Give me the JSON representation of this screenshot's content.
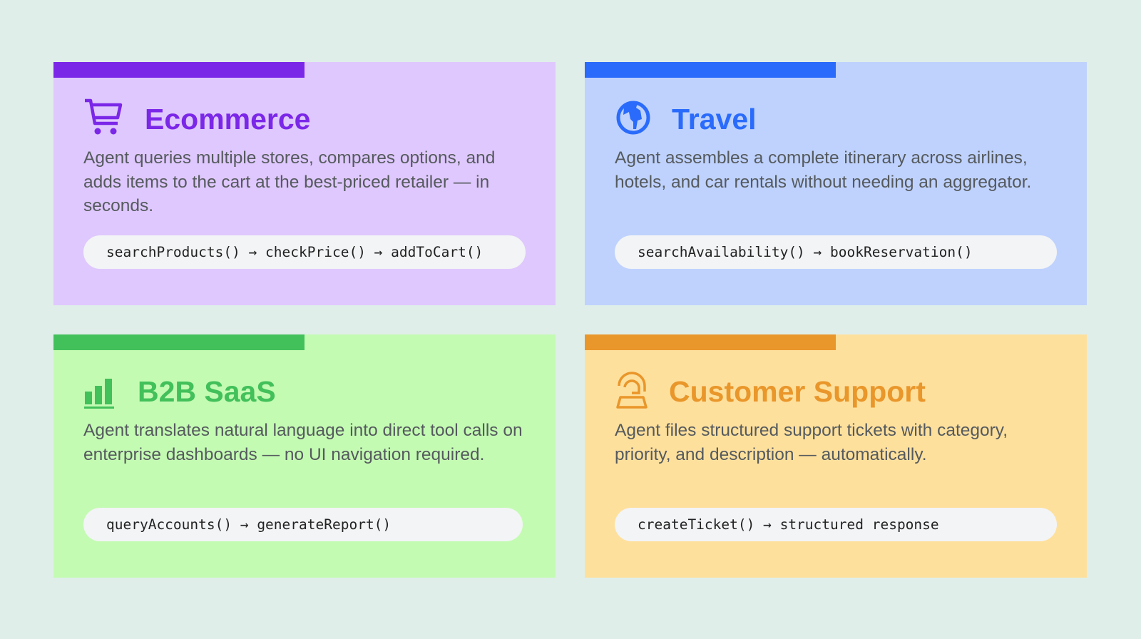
{
  "cards": [
    {
      "id": "ecommerce",
      "title": "Ecommerce",
      "icon": "shopping-cart-icon",
      "accent": "#7b27e8",
      "bg": "#dfc8fd",
      "description": "Agent queries multiple stores, compares options, and adds items to the cart at the best-priced retailer — in seconds.",
      "flow": "searchProducts() → checkPrice() → addToCart()"
    },
    {
      "id": "travel",
      "title": "Travel",
      "icon": "globe-icon",
      "accent": "#2a6bfb",
      "bg": "#bfd2fd",
      "description": "Agent assembles a complete itinerary across airlines, hotels, and car rentals without needing an aggregator.",
      "flow": "searchAvailability() → bookReservation()"
    },
    {
      "id": "b2b",
      "title": "B2B SaaS",
      "icon": "bar-chart-icon",
      "accent": "#42c05a",
      "bg": "#c4fbb3",
      "description": "Agent translates natural language into direct tool calls on enterprise dashboards — no UI navigation required.",
      "flow": "queryAccounts() → generateReport()"
    },
    {
      "id": "support",
      "title": "Customer Support",
      "icon": "support-agent-icon",
      "accent": "#e9962a",
      "bg": "#fee09d",
      "description": "Agent files structured support tickets with category, priority, and description — automatically.",
      "flow": "createTicket() → structured response"
    }
  ]
}
